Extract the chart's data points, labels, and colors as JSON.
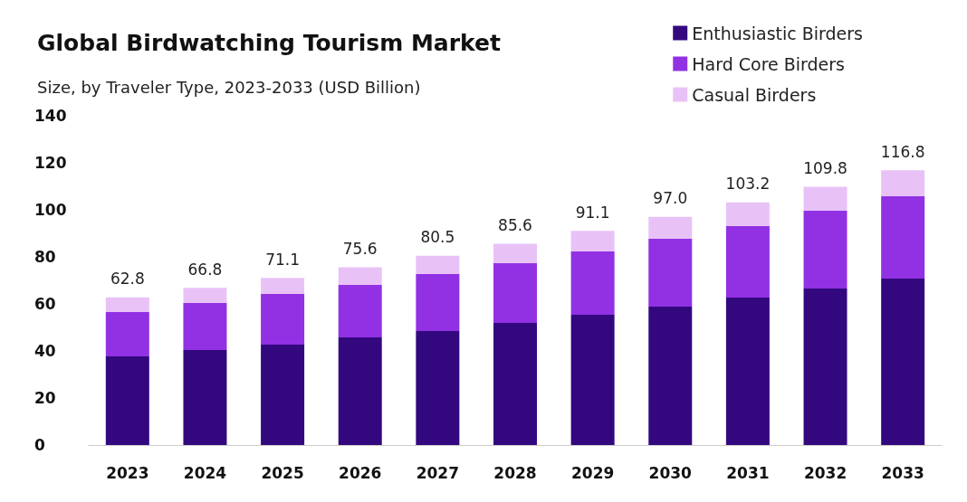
{
  "chart_data": {
    "type": "bar",
    "title": "Global Birdwatching Tourism Market",
    "subtitle": "Size, by Traveler Type, 2023-2033 (USD Billion)",
    "categories": [
      "2023",
      "2024",
      "2025",
      "2026",
      "2027",
      "2028",
      "2029",
      "2030",
      "2031",
      "2032",
      "2033"
    ],
    "stacked": true,
    "ylim": [
      0,
      140
    ],
    "yticks": [
      0,
      20,
      40,
      60,
      80,
      100,
      120,
      140
    ],
    "grid": false,
    "legend": "top right",
    "series": [
      {
        "name": "Enthusiastic Birders",
        "color": "#33087f",
        "values": [
          37.7,
          40.4,
          42.7,
          45.8,
          48.5,
          51.9,
          55.4,
          58.8,
          62.7,
          66.5,
          70.8
        ]
      },
      {
        "name": "Hard Core Birders",
        "color": "#9131e3",
        "values": [
          18.8,
          20.0,
          21.5,
          22.3,
          24.2,
          25.4,
          26.9,
          28.9,
          30.4,
          33.1,
          35.0
        ]
      },
      {
        "name": "Casual Birders",
        "color": "#e8c2f7",
        "values": [
          6.3,
          6.4,
          6.9,
          7.5,
          7.8,
          8.3,
          8.8,
          9.3,
          10.1,
          10.2,
          11.0
        ]
      }
    ],
    "totals": [
      "62.8",
      "66.8",
      "71.1",
      "75.6",
      "80.5",
      "85.6",
      "91.1",
      "97.0",
      "103.2",
      "109.8",
      "116.8"
    ]
  }
}
